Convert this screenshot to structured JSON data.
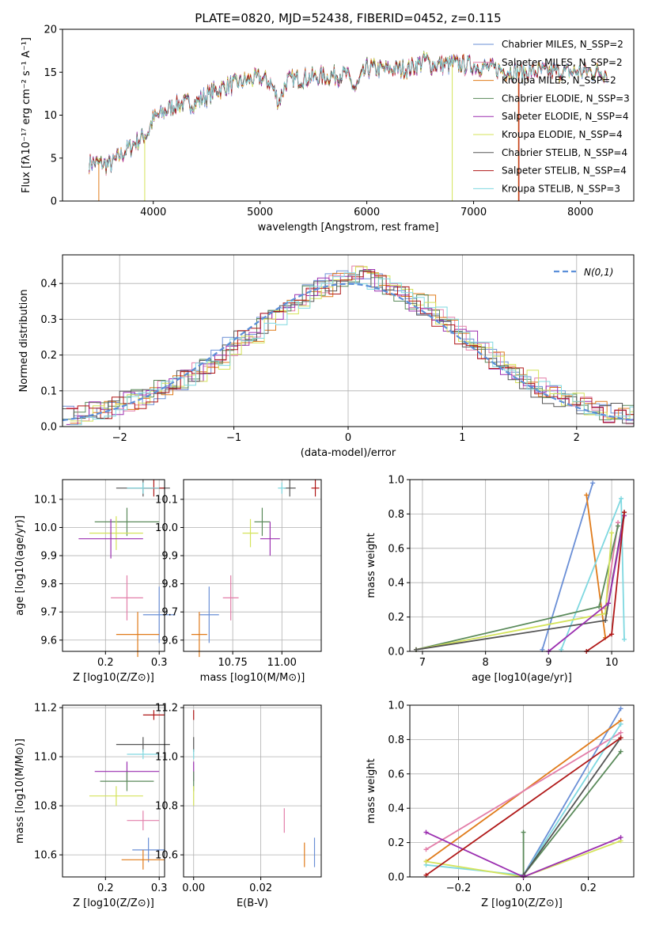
{
  "chart_data": [
    {
      "type": "line",
      "title": "PLATE=0820, MJD=52438, FIBERID=0452, z=0.115",
      "xlabel": "wavelength [Angstrom, rest frame]",
      "ylabel": "Flux [fλ10⁻¹⁷ erg cm⁻² s⁻¹ A⁻¹]",
      "xlim": [
        3150,
        8500
      ],
      "ylim": [
        0,
        20
      ],
      "xticks": [
        4000,
        5000,
        6000,
        7000,
        8000
      ],
      "yticks": [
        0,
        5,
        10,
        15,
        20
      ],
      "legend_position": "upper right",
      "continuum_anchor": {
        "x": [
          3400,
          3600,
          3800,
          3950,
          4000,
          4200,
          4400,
          4600,
          4860,
          5000,
          5100,
          5175,
          5250,
          5400,
          5600,
          5800,
          5893,
          6000,
          6200,
          6400,
          6563,
          6600,
          6800,
          7000,
          7200,
          7400,
          7600,
          7800,
          8000,
          8250
        ],
        "y": [
          4.5,
          4.2,
          6.5,
          8.0,
          9.5,
          11.2,
          11.5,
          13.0,
          14.0,
          14.3,
          13.8,
          11.5,
          14.0,
          14.3,
          14.5,
          14.8,
          13.0,
          15.5,
          15.3,
          15.4,
          16.5,
          15.8,
          16.0,
          15.8,
          15.4,
          15.0,
          15.1,
          15.0,
          15.1,
          15.0
        ]
      },
      "series": [
        {
          "name": "Chabrier MILES, N_SSP=2",
          "color": "#6a8fd6"
        },
        {
          "name": "Salpeter MILES, N_SSP=2",
          "color": "#e37ea9"
        },
        {
          "name": "Kroupa MILES, N_SSP=2",
          "color": "#e07b1a"
        },
        {
          "name": "Chabrier ELODIE, N_SSP=3",
          "color": "#5a8a5a"
        },
        {
          "name": "Salpeter ELODIE, N_SSP=4",
          "color": "#9b2fb0"
        },
        {
          "name": "Kroupa ELODIE, N_SSP=4",
          "color": "#d4e35a"
        },
        {
          "name": "Chabrier STELIB, N_SSP=4",
          "color": "#555555"
        },
        {
          "name": "Salpeter STELIB, N_SSP=4",
          "color": "#b01818"
        },
        {
          "name": "Kroupa STELIB, N_SSP=3",
          "color": "#7fd8e0"
        }
      ]
    },
    {
      "type": "histogram",
      "xlabel": "(data-model)/error",
      "ylabel": "Normed distribution",
      "xlim": [
        -2.5,
        2.5
      ],
      "ylim": [
        0,
        0.48
      ],
      "xticks": [
        -2,
        -1,
        0,
        1,
        2
      ],
      "yticks": [
        0.0,
        0.1,
        0.2,
        0.3,
        0.4
      ],
      "legend": "N(0,1)",
      "bin_width": 0.1,
      "bins_start": -2.5,
      "approx_values": [
        0.03,
        0.03,
        0.04,
        0.05,
        0.06,
        0.07,
        0.08,
        0.09,
        0.1,
        0.12,
        0.13,
        0.15,
        0.17,
        0.19,
        0.22,
        0.24,
        0.26,
        0.29,
        0.31,
        0.33,
        0.36,
        0.37,
        0.39,
        0.4,
        0.41,
        0.42,
        0.41,
        0.4,
        0.39,
        0.37,
        0.35,
        0.34,
        0.31,
        0.29,
        0.26,
        0.24,
        0.21,
        0.19,
        0.16,
        0.14,
        0.13,
        0.11,
        0.09,
        0.08,
        0.07,
        0.06,
        0.05,
        0.04,
        0.04,
        0.03
      ]
    },
    {
      "type": "scatter",
      "xlabel": "Z [log10(Z/Z⊙)]",
      "ylabel": "age [log10(age/yr)]",
      "xlim": [
        0.12,
        0.31
      ],
      "ylim": [
        9.56,
        10.17
      ],
      "xticks": [
        0.2,
        0.3
      ],
      "yticks": [
        9.6,
        9.7,
        9.8,
        9.9,
        10.0,
        10.1
      ],
      "points": [
        {
          "x": 0.27,
          "y": 10.14,
          "xerr": 0.05,
          "yerr": 0.03,
          "color": "#555555"
        },
        {
          "x": 0.29,
          "y": 10.14,
          "xerr": 0.02,
          "yerr": 0.03,
          "color": "#b01818"
        },
        {
          "x": 0.27,
          "y": 10.14,
          "xerr": 0.03,
          "yerr": 0.02,
          "color": "#7fd8e0"
        },
        {
          "x": 0.24,
          "y": 10.02,
          "xerr": 0.06,
          "yerr": 0.05,
          "color": "#5a8a5a"
        },
        {
          "x": 0.22,
          "y": 9.98,
          "xerr": 0.05,
          "yerr": 0.06,
          "color": "#d4e35a"
        },
        {
          "x": 0.21,
          "y": 9.96,
          "xerr": 0.06,
          "yerr": 0.07,
          "color": "#9b2fb0"
        },
        {
          "x": 0.24,
          "y": 9.75,
          "xerr": 0.03,
          "yerr": 0.08,
          "color": "#e37ea9"
        },
        {
          "x": 0.3,
          "y": 9.69,
          "xerr": 0.03,
          "yerr": 0.1,
          "color": "#6a8fd6"
        },
        {
          "x": 0.26,
          "y": 9.62,
          "xerr": 0.04,
          "yerr": 0.08,
          "color": "#e07b1a"
        }
      ]
    },
    {
      "type": "scatter",
      "xlabel": "mass [log10(M/M⊙)]",
      "ylabel": "",
      "xlim": [
        10.5,
        11.2
      ],
      "ylim": [
        9.56,
        10.17
      ],
      "xticks": [
        10.75,
        11.0
      ],
      "yticks": [
        9.6,
        9.7,
        9.8,
        9.9,
        10.0,
        10.1
      ],
      "points": [
        {
          "x": 11.04,
          "y": 10.14,
          "xerr": 0.03,
          "yerr": 0.03,
          "color": "#555555"
        },
        {
          "x": 11.17,
          "y": 10.14,
          "xerr": 0.02,
          "yerr": 0.03,
          "color": "#b01818"
        },
        {
          "x": 11.0,
          "y": 10.14,
          "xerr": 0.02,
          "yerr": 0.02,
          "color": "#7fd8e0"
        },
        {
          "x": 10.9,
          "y": 10.02,
          "xerr": 0.04,
          "yerr": 0.05,
          "color": "#5a8a5a"
        },
        {
          "x": 10.84,
          "y": 9.98,
          "xerr": 0.04,
          "yerr": 0.05,
          "color": "#d4e35a"
        },
        {
          "x": 10.94,
          "y": 9.96,
          "xerr": 0.05,
          "yerr": 0.06,
          "color": "#9b2fb0"
        },
        {
          "x": 10.74,
          "y": 9.75,
          "xerr": 0.04,
          "yerr": 0.08,
          "color": "#e37ea9"
        },
        {
          "x": 10.63,
          "y": 9.69,
          "xerr": 0.05,
          "yerr": 0.1,
          "color": "#6a8fd6"
        },
        {
          "x": 10.58,
          "y": 9.62,
          "xerr": 0.04,
          "yerr": 0.08,
          "color": "#e07b1a"
        }
      ]
    },
    {
      "type": "line",
      "xlabel": "age [log10(age/yr)]",
      "ylabel": "mass weight",
      "xlim": [
        6.8,
        10.35
      ],
      "ylim": [
        0,
        1.0
      ],
      "xticks": [
        7,
        8,
        9,
        10
      ],
      "yticks": [
        0.0,
        0.2,
        0.4,
        0.6,
        0.8,
        1.0
      ],
      "series": [
        {
          "color": "#6a8fd6",
          "x": [
            8.9,
            9.7
          ],
          "y": [
            0.01,
            0.98
          ]
        },
        {
          "color": "#e07b1a",
          "x": [
            9.6,
            9.9
          ],
          "y": [
            0.91,
            0.08
          ]
        },
        {
          "color": "#e37ea9",
          "x": [
            9.9,
            10.1
          ],
          "y": [
            0.25,
            0.75
          ]
        },
        {
          "color": "#7fd8e0",
          "x": [
            9.2,
            10.15,
            10.2
          ],
          "y": [
            0.01,
            0.89,
            0.07
          ]
        },
        {
          "color": "#5a8a5a",
          "x": [
            6.9,
            9.8,
            10.1
          ],
          "y": [
            0.01,
            0.26,
            0.73
          ]
        },
        {
          "color": "#d4e35a",
          "x": [
            6.9,
            9.9,
            10.0
          ],
          "y": [
            0.01,
            0.22,
            0.69
          ]
        },
        {
          "color": "#555555",
          "x": [
            6.9,
            9.9,
            10.2
          ],
          "y": [
            0.01,
            0.18,
            0.81
          ]
        },
        {
          "color": "#9b2fb0",
          "x": [
            9.0,
            9.95,
            10.2
          ],
          "y": [
            0.0,
            0.28,
            0.79
          ]
        },
        {
          "color": "#b01818",
          "x": [
            9.6,
            10.0,
            10.2
          ],
          "y": [
            0.0,
            0.1,
            0.81
          ]
        }
      ]
    },
    {
      "type": "scatter",
      "xlabel": "Z [log10(Z/Z⊙)]",
      "ylabel": "mass [log10(M/M⊙)]",
      "xlim": [
        0.12,
        0.31
      ],
      "ylim": [
        10.51,
        11.21
      ],
      "xticks": [
        0.2,
        0.3
      ],
      "yticks": [
        10.6,
        10.8,
        11.0,
        11.2
      ],
      "points": [
        {
          "x": 0.29,
          "y": 11.17,
          "xerr": 0.02,
          "yerr": 0.02,
          "color": "#b01818"
        },
        {
          "x": 0.27,
          "y": 11.05,
          "xerr": 0.05,
          "yerr": 0.03,
          "color": "#555555"
        },
        {
          "x": 0.27,
          "y": 11.01,
          "xerr": 0.03,
          "yerr": 0.02,
          "color": "#7fd8e0"
        },
        {
          "x": 0.24,
          "y": 10.94,
          "xerr": 0.06,
          "yerr": 0.04,
          "color": "#9b2fb0"
        },
        {
          "x": 0.24,
          "y": 10.9,
          "xerr": 0.05,
          "yerr": 0.04,
          "color": "#5a8a5a"
        },
        {
          "x": 0.22,
          "y": 10.84,
          "xerr": 0.05,
          "yerr": 0.04,
          "color": "#d4e35a"
        },
        {
          "x": 0.27,
          "y": 10.74,
          "xerr": 0.03,
          "yerr": 0.04,
          "color": "#e37ea9"
        },
        {
          "x": 0.28,
          "y": 10.62,
          "xerr": 0.03,
          "yerr": 0.05,
          "color": "#6a8fd6"
        },
        {
          "x": 0.27,
          "y": 10.58,
          "xerr": 0.04,
          "yerr": 0.04,
          "color": "#e07b1a"
        }
      ]
    },
    {
      "type": "scatter",
      "xlabel": "E(B-V)",
      "ylabel": "",
      "xlim": [
        -0.003,
        0.038
      ],
      "ylim": [
        10.51,
        11.21
      ],
      "xticks": [
        0.0,
        0.02
      ],
      "yticks": [
        10.6,
        10.8,
        11.0,
        11.2
      ],
      "points": [
        {
          "x": 0.0,
          "y": 11.17,
          "yerr": 0.02,
          "color": "#b01818"
        },
        {
          "x": 0.0,
          "y": 11.05,
          "yerr": 0.03,
          "color": "#555555"
        },
        {
          "x": 0.0,
          "y": 11.01,
          "yerr": 0.02,
          "color": "#7fd8e0"
        },
        {
          "x": 0.0,
          "y": 10.94,
          "yerr": 0.04,
          "color": "#9b2fb0"
        },
        {
          "x": 0.0,
          "y": 10.9,
          "yerr": 0.04,
          "color": "#5a8a5a"
        },
        {
          "x": 0.0,
          "y": 10.84,
          "yerr": 0.04,
          "color": "#d4e35a"
        },
        {
          "x": 0.027,
          "y": 10.74,
          "yerr": 0.05,
          "color": "#e37ea9"
        },
        {
          "x": 0.036,
          "y": 10.61,
          "yerr": 0.06,
          "color": "#6a8fd6"
        },
        {
          "x": 0.033,
          "y": 10.6,
          "yerr": 0.05,
          "color": "#e07b1a"
        }
      ]
    },
    {
      "type": "line",
      "xlabel": "Z [log10(Z/Z⊙)]",
      "ylabel": "mass weight",
      "xlim": [
        -0.35,
        0.34
      ],
      "ylim": [
        0,
        1.0
      ],
      "xticks": [
        -0.2,
        0.0,
        0.2
      ],
      "yticks": [
        0.0,
        0.2,
        0.4,
        0.6,
        0.8,
        1.0
      ],
      "series": [
        {
          "color": "#6a8fd6",
          "x": [
            0.0,
            0.3
          ],
          "y": [
            0.01,
            0.98
          ]
        },
        {
          "color": "#e07b1a",
          "x": [
            -0.3,
            0.3
          ],
          "y": [
            0.09,
            0.91
          ]
        },
        {
          "color": "#e37ea9",
          "x": [
            -0.3,
            0.3
          ],
          "y": [
            0.16,
            0.84
          ]
        },
        {
          "color": "#7fd8e0",
          "x": [
            -0.3,
            0.0,
            0.3
          ],
          "y": [
            0.07,
            0.01,
            0.89
          ]
        },
        {
          "color": "#5a8a5a",
          "x": [
            0.0,
            0.0,
            0.3
          ],
          "y": [
            0.26,
            0.01,
            0.73
          ]
        },
        {
          "color": "#d4e35a",
          "x": [
            -0.3,
            0.0,
            0.3
          ],
          "y": [
            0.09,
            0.0,
            0.21
          ]
        },
        {
          "color": "#555555",
          "x": [
            0.0,
            0.3
          ],
          "y": [
            0.01,
            0.81
          ]
        },
        {
          "color": "#9b2fb0",
          "x": [
            -0.3,
            0.0,
            0.3
          ],
          "y": [
            0.26,
            0.0,
            0.23
          ]
        },
        {
          "color": "#b01818",
          "x": [
            -0.3,
            0.3
          ],
          "y": [
            0.01,
            0.81
          ]
        }
      ]
    }
  ]
}
